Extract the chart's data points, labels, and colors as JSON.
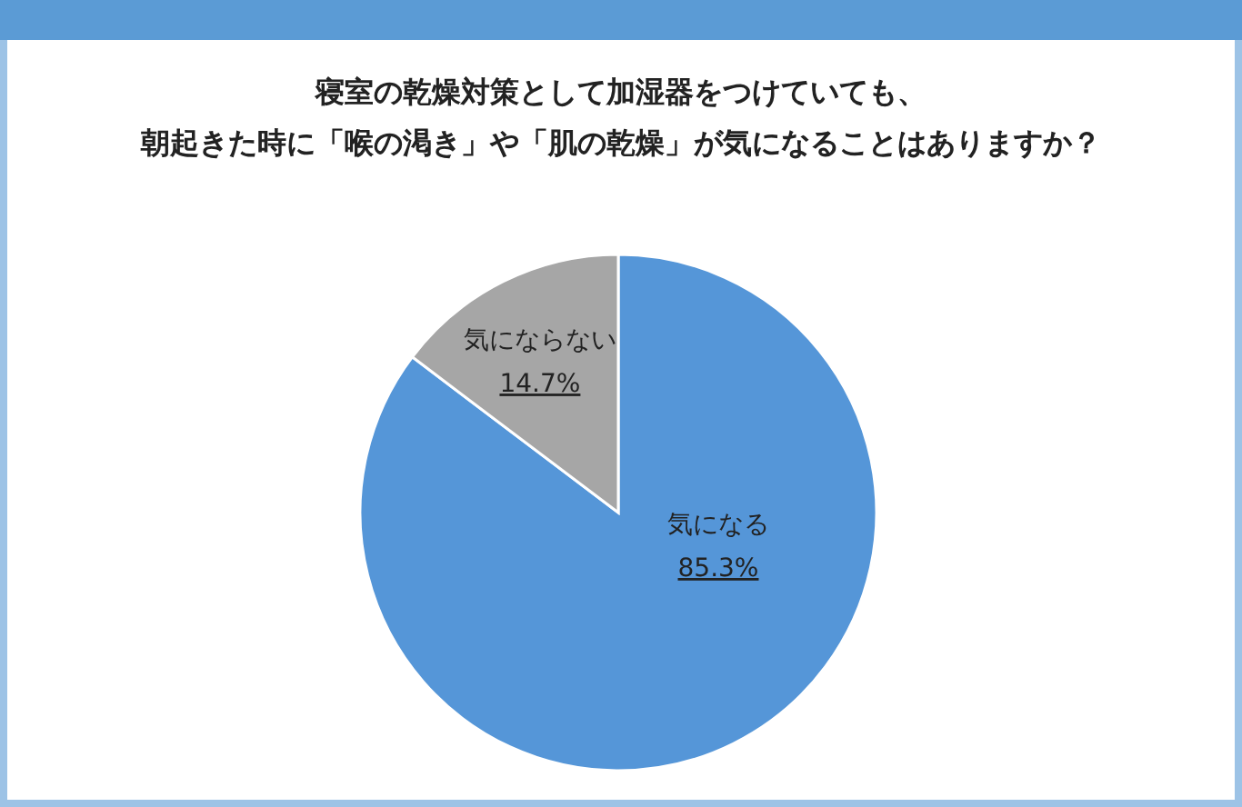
{
  "chart_data": {
    "type": "pie",
    "title": "寝室の乾燥対策として加湿器をつけていても、",
    "subtitle": "朝起きた時に「喉の渇き」や「肌の乾燥」が気になることはありますか？",
    "categories": [
      "気になる",
      "気にならない"
    ],
    "values": [
      85.3,
      14.7
    ],
    "value_labels": [
      "85.3%",
      "14.7%"
    ],
    "colors": [
      "#5596d8",
      "#a6a6a6"
    ]
  }
}
